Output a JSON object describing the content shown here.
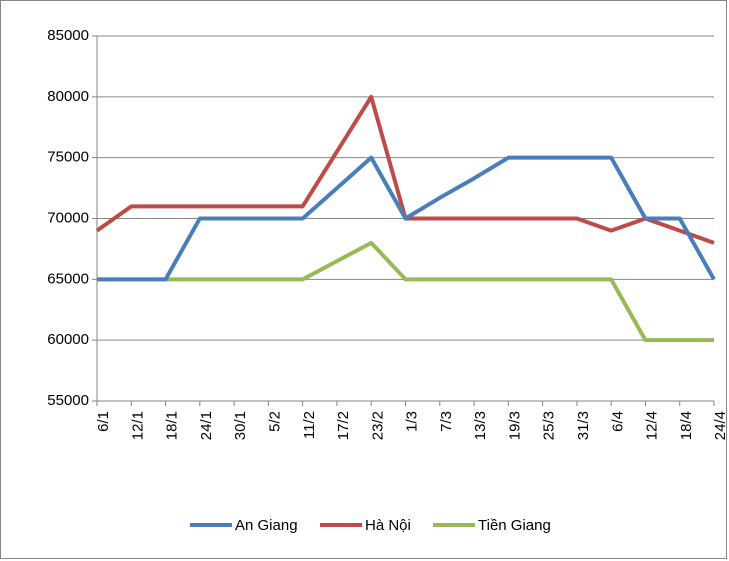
{
  "chart_data": {
    "type": "line",
    "categories": [
      "6/1",
      "12/1",
      "18/1",
      "24/1",
      "30/1",
      "5/2",
      "11/2",
      "17/2",
      "23/2",
      "1/3",
      "7/3",
      "13/3",
      "19/3",
      "25/3",
      "31/3",
      "6/4",
      "12/4",
      "18/4",
      "24/4"
    ],
    "series": [
      {
        "name": "An Giang",
        "color": "#4a7ebb",
        "values": [
          65000,
          65000,
          65000,
          70000,
          70000,
          70000,
          70000,
          72500,
          75000,
          70000,
          71700,
          73300,
          75000,
          75000,
          75000,
          75000,
          70000,
          70000,
          65000
        ]
      },
      {
        "name": "Hà Nội",
        "color": "#be4b48",
        "values": [
          69000,
          71000,
          71000,
          71000,
          71000,
          71000,
          71000,
          75500,
          80000,
          70000,
          70000,
          70000,
          70000,
          70000,
          70000,
          69000,
          70000,
          69000,
          68000
        ]
      },
      {
        "name": "Tiền Giang",
        "color": "#98b954",
        "values": [
          65000,
          65000,
          65000,
          65000,
          65000,
          65000,
          65000,
          66500,
          68000,
          65000,
          65000,
          65000,
          65000,
          65000,
          65000,
          65000,
          60000,
          60000,
          60000
        ]
      }
    ],
    "ylim": [
      55000,
      85000
    ],
    "yticks": [
      55000,
      60000,
      65000,
      70000,
      75000,
      80000,
      85000
    ],
    "grid": true,
    "legend": "bottom"
  }
}
